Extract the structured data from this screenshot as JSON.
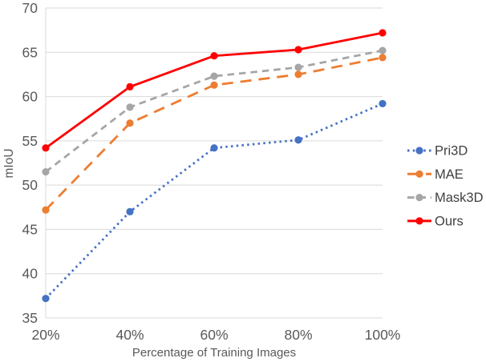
{
  "chart_data": {
    "type": "line",
    "title": "",
    "xlabel": "Percentage of Training Images",
    "ylabel": "mIoU",
    "categories": [
      "20%",
      "40%",
      "60%",
      "80%",
      "100%"
    ],
    "yticks": [
      35,
      40,
      45,
      50,
      55,
      60,
      65,
      70
    ],
    "ylim": [
      35,
      70
    ],
    "grid": "horizontal",
    "legend_position": "right-middle",
    "series": [
      {
        "name": "Pri3D",
        "color": "#4472C4",
        "line_style": "dotted",
        "marker": "circle",
        "values": [
          37.2,
          47.0,
          54.2,
          55.1,
          59.2
        ]
      },
      {
        "name": "MAE",
        "color": "#ED7D31",
        "line_style": "long-dash",
        "marker": "circle",
        "values": [
          47.2,
          57.0,
          61.3,
          62.5,
          64.4
        ]
      },
      {
        "name": "Mask3D",
        "color": "#A6A6A6",
        "line_style": "dash",
        "marker": "circle",
        "values": [
          51.5,
          58.8,
          62.3,
          63.3,
          65.2
        ]
      },
      {
        "name": "Ours",
        "color": "#FE0000",
        "line_style": "solid",
        "marker": "circle",
        "values": [
          54.2,
          61.1,
          64.6,
          65.3,
          67.2
        ]
      }
    ],
    "colors": {
      "tick_text": "#595959",
      "axis_title_text": "#595959",
      "legend_text": "#404040",
      "gridline": "#D9D9D9",
      "background": "#ffffff"
    }
  }
}
